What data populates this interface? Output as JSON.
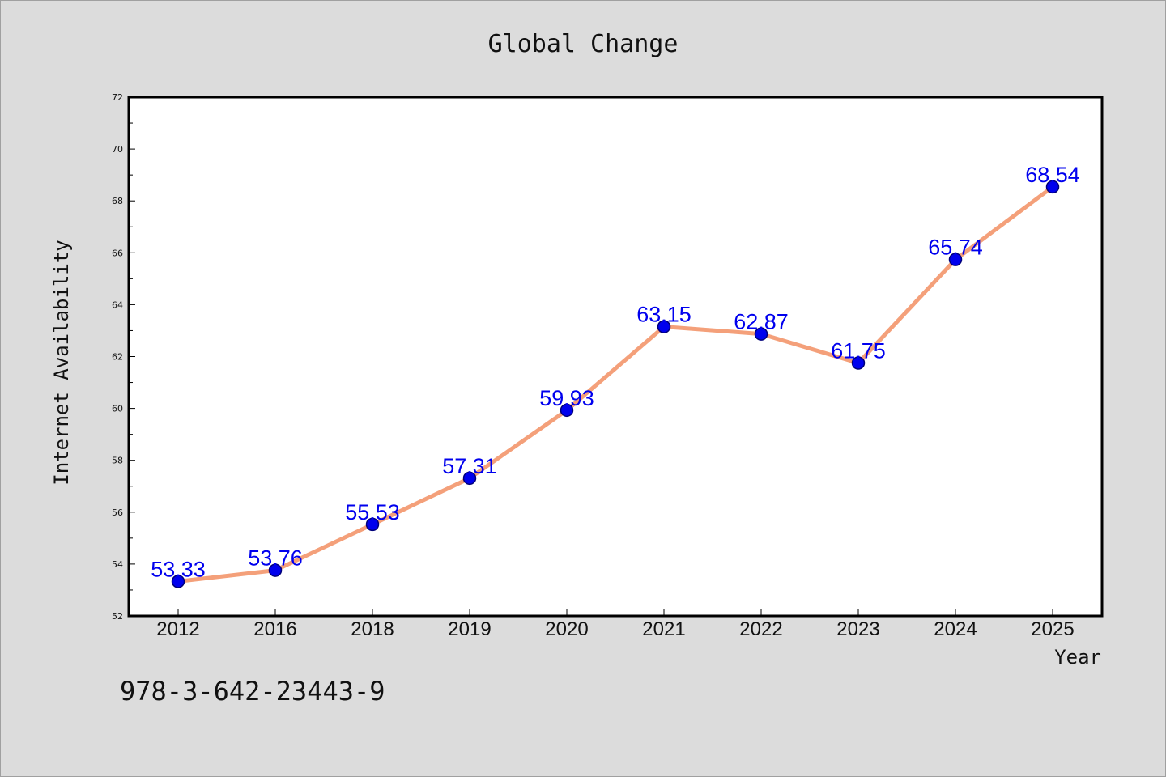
{
  "chart_data": {
    "type": "line",
    "title": "Global Change",
    "xlabel": "Year",
    "ylabel": "Internet Availability",
    "categories": [
      "2012",
      "2016",
      "2018",
      "2019",
      "2020",
      "2021",
      "2022",
      "2023",
      "2024",
      "2025"
    ],
    "values": [
      53.33,
      53.76,
      55.53,
      57.31,
      59.93,
      63.15,
      62.87,
      61.75,
      65.74,
      68.54
    ],
    "value_labels": [
      "53.33",
      "53.76",
      "55.53",
      "57.31",
      "59.93",
      "63.15",
      "62.87",
      "61.75",
      "65.74",
      "68.54"
    ],
    "ylim": [
      52,
      72
    ],
    "yticks": [
      52,
      54,
      56,
      58,
      60,
      62,
      64,
      66,
      68,
      70,
      72
    ],
    "grid": false,
    "legend": "none",
    "colors": {
      "line": "#f4a07a",
      "marker": "#0000ee",
      "label": "#0000ee",
      "background": "#dcdcdc",
      "plot_background": "#ffffff"
    }
  },
  "footnote": "978-3-642-23443-9"
}
